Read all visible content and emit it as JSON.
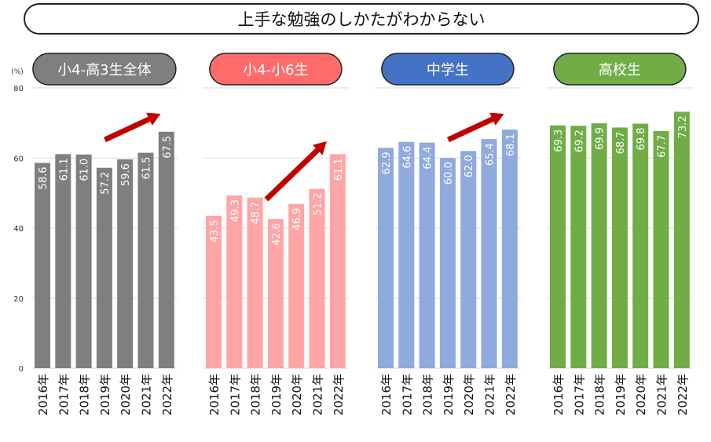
{
  "title": "上手な勉強のしかたがわからない",
  "unit_label": "(%)",
  "y_ticks": [
    0,
    20,
    40,
    60,
    80
  ],
  "years": [
    "2016年",
    "2017年",
    "2018年",
    "2019年",
    "2020年",
    "2021年",
    "2022年"
  ],
  "chart_data": [
    {
      "type": "bar",
      "title": "小4-高3生全体",
      "categories": [
        "2016年",
        "2017年",
        "2018年",
        "2019年",
        "2020年",
        "2021年",
        "2022年"
      ],
      "values": [
        58.6,
        61.1,
        61.0,
        57.2,
        59.6,
        61.5,
        67.5
      ],
      "labels": [
        "58.6",
        "61.1",
        "61.0",
        "57.2",
        "59.6",
        "61.5",
        "67.5"
      ],
      "ylabel": "(%)",
      "ylim": [
        0,
        80
      ],
      "bar_color": "#7f7f7f",
      "header_color": "#7f7f7f",
      "header_text_color": "#ffffff",
      "arrow": true,
      "grid": true
    },
    {
      "type": "bar",
      "title": "小4-小6生",
      "categories": [
        "2016年",
        "2017年",
        "2018年",
        "2019年",
        "2020年",
        "2021年",
        "2022年"
      ],
      "values": [
        43.5,
        49.3,
        48.7,
        42.6,
        46.9,
        51.2,
        61.1
      ],
      "labels": [
        "43.5",
        "49.3",
        "48.7",
        "42.6",
        "46.9",
        "51.2",
        "61.1"
      ],
      "ylim": [
        0,
        80
      ],
      "bar_color": "#ffa5a5",
      "header_color": "#ff6b6b",
      "header_text_color": "#ffffff",
      "arrow": true,
      "grid": true
    },
    {
      "type": "bar",
      "title": "中学生",
      "categories": [
        "2016年",
        "2017年",
        "2018年",
        "2019年",
        "2020年",
        "2021年",
        "2022年"
      ],
      "values": [
        62.9,
        64.6,
        64.4,
        60.0,
        62.0,
        65.4,
        68.1
      ],
      "labels": [
        "62.9",
        "64.6",
        "64.4",
        "60.0",
        "62.0",
        "65.4",
        "68.1"
      ],
      "ylim": [
        0,
        80
      ],
      "bar_color": "#8faadc",
      "header_color": "#4472c4",
      "header_text_color": "#ffffff",
      "arrow": true,
      "grid": true
    },
    {
      "type": "bar",
      "title": "高校生",
      "categories": [
        "2016年",
        "2017年",
        "2018年",
        "2019年",
        "2020年",
        "2021年",
        "2022年"
      ],
      "values": [
        69.3,
        69.2,
        69.9,
        68.7,
        69.8,
        67.7,
        73.2
      ],
      "labels": [
        "69.3",
        "69.2",
        "69.9",
        "68.7",
        "69.8",
        "67.7",
        "73.2"
      ],
      "ylim": [
        0,
        80
      ],
      "bar_color": "#70ad47",
      "header_color": "#70ad47",
      "header_text_color": "#ffffff",
      "arrow": false,
      "grid": true
    }
  ],
  "colors": {
    "arrow": "#c00000",
    "grid": "#d9d9d9",
    "axis_text": "#333333"
  }
}
